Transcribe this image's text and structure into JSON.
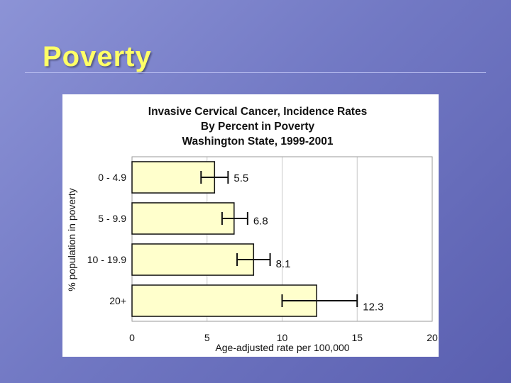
{
  "slide": {
    "title": "Poverty"
  },
  "chart_data": {
    "type": "bar",
    "orientation": "horizontal",
    "title_lines": [
      "Invasive Cervical Cancer, Incidence Rates",
      "By Percent in Poverty",
      "Washington State, 1999-2001"
    ],
    "ylabel": "% population in poverty",
    "xlabel": "Age-adjusted rate per 100,000",
    "categories": [
      "0 - 4.9",
      "5 - 9.9",
      "10 - 19.9",
      "20+"
    ],
    "values": [
      5.5,
      6.8,
      8.1,
      12.3
    ],
    "value_labels": [
      "5.5",
      "6.8",
      "8.1",
      "12.3"
    ],
    "error_low": [
      4.6,
      6.0,
      7.0,
      10.0
    ],
    "error_high": [
      6.4,
      7.7,
      9.2,
      15.0
    ],
    "xlim": [
      0,
      20
    ],
    "xticks": [
      "0",
      "5",
      "10",
      "15",
      "20"
    ],
    "bar_color": "#ffffcc",
    "grid": "vertical"
  }
}
